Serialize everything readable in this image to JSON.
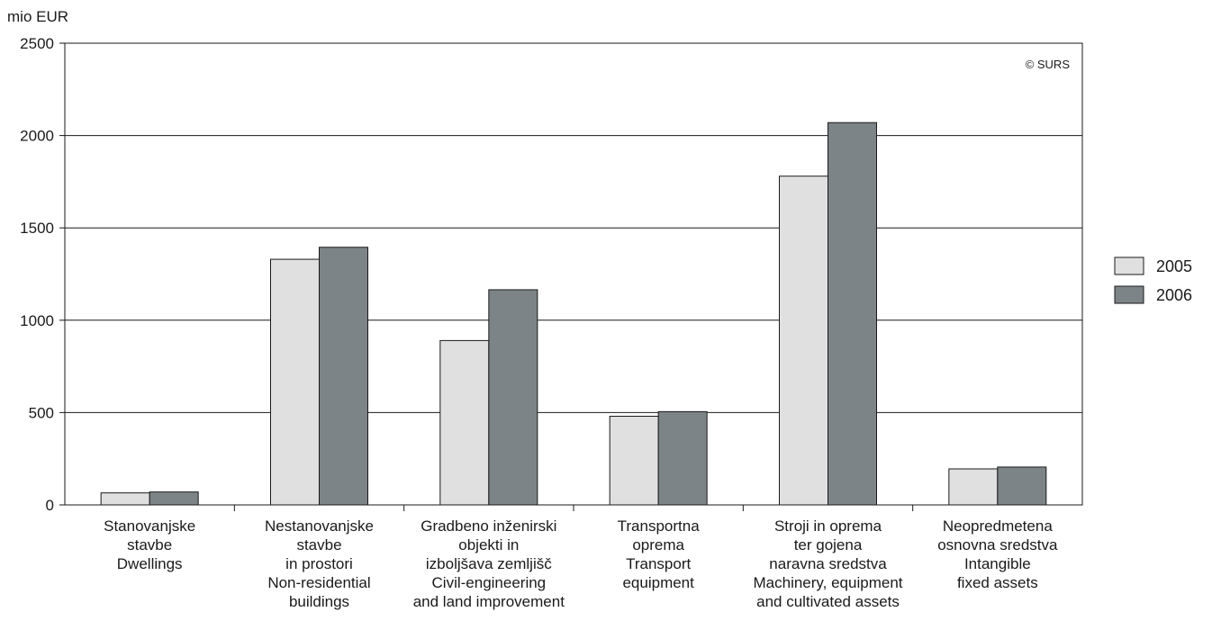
{
  "chart_data": {
    "type": "bar",
    "ylabel": "mio EUR",
    "ylim": [
      0,
      2500
    ],
    "yticks": [
      0,
      500,
      1000,
      1500,
      2000,
      2500
    ],
    "grid": true,
    "legend_position": "right",
    "copyright": "© SURS",
    "categories": [
      [
        "Stanovanjske",
        "stavbe",
        "Dwellings"
      ],
      [
        "Nestanovanjske",
        "stavbe",
        "in prostori",
        "Non-residential",
        "buildings"
      ],
      [
        "Gradbeno inženirski",
        "objekti in",
        "izboljšava zemljišč",
        "Civil-engineering",
        "and land improvement"
      ],
      [
        "Transportna",
        "oprema",
        "Transport",
        "equipment"
      ],
      [
        "Stroji in oprema",
        "ter gojena",
        "naravna sredstva",
        "Machinery, equipment",
        "and cultivated assets"
      ],
      [
        "Neopredmetena",
        "osnovna sredstva",
        "Intangible",
        "fixed assets"
      ]
    ],
    "series": [
      {
        "name": "2005",
        "color": "#e0e0e0",
        "values": [
          65,
          1330,
          890,
          480,
          1780,
          195
        ]
      },
      {
        "name": "2006",
        "color": "#7d8487",
        "values": [
          70,
          1395,
          1165,
          505,
          2070,
          205
        ]
      }
    ]
  }
}
